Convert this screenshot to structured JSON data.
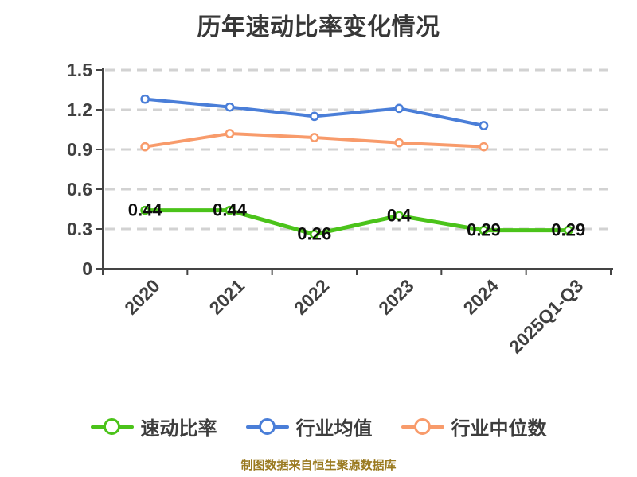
{
  "title": "历年速动比率变化情况",
  "footer": {
    "text": "制图数据来自恒生聚源数据库",
    "color": "#9a7a20"
  },
  "colors": {
    "background": "#ffffff",
    "axis": "#444444",
    "grid": "#d2d2d2",
    "tick_label": "#404040",
    "value_label": "#0d0d0d",
    "title": "#383838",
    "quick_ratio": "#4bc31a",
    "industry_mean": "#4a7ed8",
    "industry_median": "#f89b6b"
  },
  "chart_data": {
    "type": "line",
    "title": "历年速动比率变化情况",
    "categories": [
      "2020",
      "2021",
      "2022",
      "2023",
      "2024",
      "2025Q1-Q3"
    ],
    "series": [
      {
        "name": "速动比率",
        "color": "#4bc31a",
        "values": [
          0.44,
          0.44,
          0.26,
          0.4,
          0.29,
          0.29
        ],
        "show_labels": true,
        "line_width": 5
      },
      {
        "name": "行业均值",
        "color": "#4a7ed8",
        "values": [
          1.28,
          1.22,
          1.15,
          1.21,
          1.08
        ],
        "show_labels": false,
        "line_width": 4
      },
      {
        "name": "行业中位数",
        "color": "#f89b6b",
        "values": [
          0.92,
          1.02,
          0.99,
          0.95,
          0.92
        ],
        "show_labels": false,
        "line_width": 4
      }
    ],
    "xlabel": "",
    "ylabel": "",
    "ylim": [
      0,
      1.5
    ],
    "yticks": [
      "0",
      "0.3",
      "0.6",
      "0.9",
      "1.2",
      "1.5"
    ],
    "grid": true,
    "grid_style": "dashed",
    "x_label_rotation": -45,
    "marker": "circle-white-fill",
    "legend_position": "bottom"
  }
}
